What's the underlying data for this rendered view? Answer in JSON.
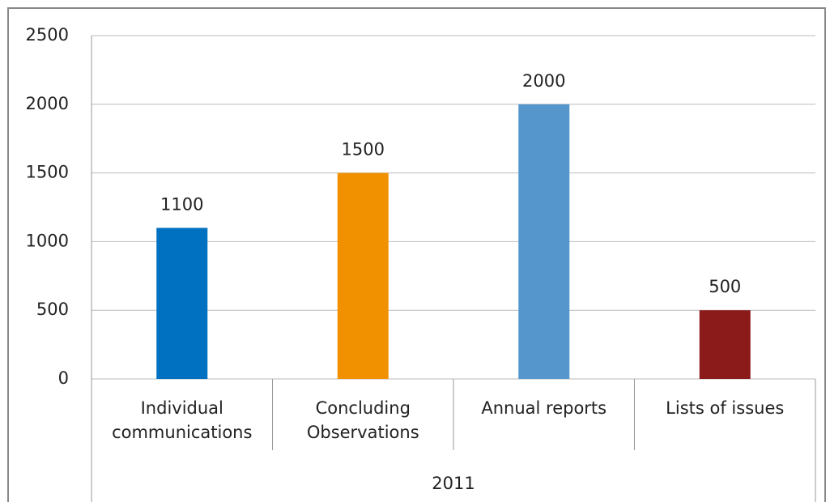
{
  "chart_data": {
    "type": "bar",
    "categories": [
      "Individual communications",
      "Concluding Observations",
      "Annual reports",
      "Lists of issues"
    ],
    "values": [
      1100,
      1500,
      2000,
      500
    ],
    "colors": [
      "#0070c0",
      "#f29100",
      "#5596cc",
      "#8b1a1a"
    ],
    "group_label": "2011",
    "ylim": [
      0,
      2500
    ],
    "yticks": [
      0,
      500,
      1000,
      1500,
      2000,
      2500
    ],
    "grid": true
  }
}
